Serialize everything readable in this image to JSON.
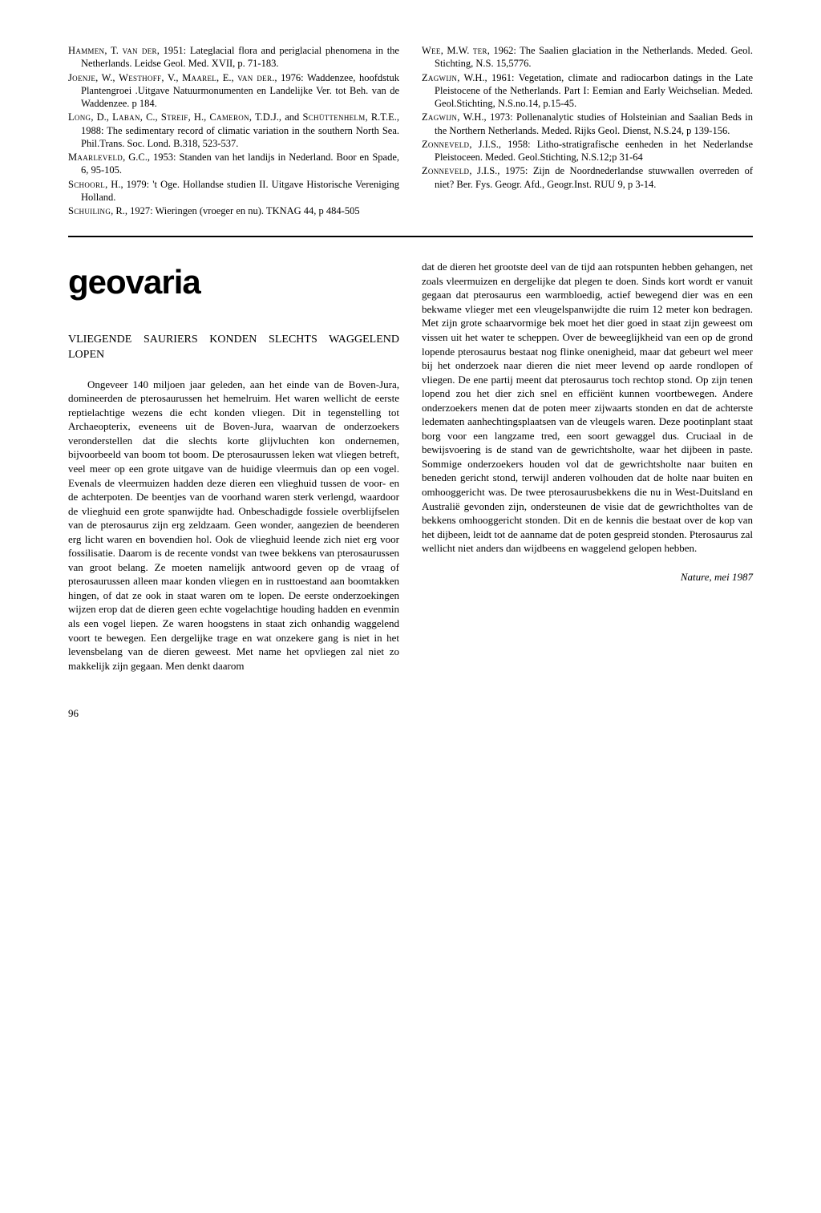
{
  "references": {
    "left": [
      {
        "text": "Hammen, T. van der, 1951: Lateglacial flora and periglacial phenomena in the Netherlands. Leidse Geol. Med. XVII, p. 71-183.",
        "author": "Hammen, T. van der"
      },
      {
        "text": "Joenje, W., Westhoff, V., Maarel, E., van der., 1976: Waddenzee, hoofdstuk Plantengroei .Uitgave Natuurmonumenten en Landelijke Ver. tot Beh. van de Waddenzee. p 184.",
        "author": "Joenje, W., Westhoff, V., Maarel, E., van der."
      },
      {
        "text": "Long, D., Laban, C., Streif, H., Cameron, T.D.J., and Schüttenhelm, R.T.E., 1988: The sedimentary record of climatic variation in the southern North Sea. Phil.Trans. Soc. Lond. B.318, 523-537.",
        "author": "Long, D., Laban, C., Streif, H., Cameron, T.D.J., and Schüttenhelm, R.T.E."
      },
      {
        "text": "Maarleveld, G.C., 1953: Standen van het landijs in Nederland. Boor en Spade, 6, 95-105.",
        "author": "Maarleveld, G.C."
      },
      {
        "text": "Schoorl, H., 1979: 't Oge. Hollandse studien II. Uitgave Historische Vereniging Holland.",
        "author": "Schoorl, H."
      },
      {
        "text": "Schuiling, R., 1927: Wieringen (vroeger en nu). TKNAG 44, p 484-505",
        "author": "Schuiling, R."
      }
    ],
    "right": [
      {
        "text": "Wee, M.W. ter, 1962: The Saalien glaciation in the Netherlands. Meded. Geol. Stichting, N.S. 15,5776.",
        "author": "Wee, M.W. ter"
      },
      {
        "text": "Zagwijn, W.H., 1961: Vegetation, climate and radiocarbon datings in the Late Pleistocene of the Netherlands. Part I: Eemian and Early Weichselian. Meded. Geol.Stichting, N.S.no.14, p.15-45.",
        "author": "Zagwijn, W.H."
      },
      {
        "text": "Zagwijn, W.H., 1973: Pollenanalytic studies of Holsteinian and Saalian Beds in the Northern Netherlands. Meded. Rijks Geol. Dienst, N.S.24, p 139-156.",
        "author": "Zagwijn, W.H."
      },
      {
        "text": "Zonneveld, J.I.S., 1958: Litho-stratigrafische eenheden in het Nederlandse Pleistoceen. Meded. Geol.Stichting, N.S.12;p 31-64",
        "author": "Zonneveld, J.I.S."
      },
      {
        "text": "Zonneveld, J.I.S., 1975: Zijn de Noordnederlandse stuwwallen overreden of niet? Ber. Fys. Geogr. Afd., Geogr.Inst. RUU 9, p 3-14.",
        "author": "Zonneveld, J.I.S."
      }
    ]
  },
  "article": {
    "section_title": "geovaria",
    "subtitle": "VLIEGENDE SAURIERS KONDEN SLECHTS WAGGELEND LOPEN",
    "left_body": "Ongeveer 140 miljoen jaar geleden, aan het einde van de Boven-Jura, domineerden de pterosaurussen het hemelruim. Het waren wellicht de eerste reptielachtige wezens die echt konden vliegen. Dit in tegenstelling tot Archaeopterix, eveneens uit de Boven-Jura, waarvan de onderzoekers veronderstellen dat die slechts korte glijvluchten kon ondernemen, bijvoorbeeld van boom tot boom. De pterosaurussen leken wat vliegen betreft, veel meer op een grote uitgave van de huidige vleermuis dan op een vogel. Evenals de vleermuizen hadden deze dieren een vlieghuid tussen de voor- en de achterpoten. De beentjes van de voorhand waren sterk verlengd, waardoor de vlieghuid een grote spanwijdte had. Onbeschadigde fossiele overblijfselen van de pterosaurus zijn erg zeldzaam. Geen wonder, aangezien de beenderen erg licht waren en bovendien hol. Ook de vlieghuid leende zich niet erg voor fossilisatie. Daarom is de recente vondst van twee bekkens van pterosaurussen van groot belang. Ze moeten namelijk antwoord geven op de vraag of pterosaurussen alleen maar konden vliegen en in rusttoestand aan boomtakken hingen, of dat ze ook in staat waren om te lopen. De eerste onderzoekingen wijzen erop dat de dieren geen echte vogelachtige houding hadden en evenmin als een vogel liepen. Ze waren hoogstens in staat zich onhandig waggelend voort te bewegen. Een dergelijke trage en wat onzekere gang is niet in het levensbelang van de dieren geweest. Met name het opvliegen zal niet zo makkelijk zijn gegaan. Men denkt daarom",
    "right_body": "dat de dieren het grootste deel van de tijd aan rotspunten hebben gehangen, net zoals vleermuizen en dergelijke dat plegen te doen. Sinds kort wordt er vanuit gegaan dat pterosaurus een warmbloedig, actief bewegend dier was en een bekwame vlieger met een vleugelspanwijdte die ruim 12 meter kon bedragen. Met zijn grote schaarvormige bek moet het dier goed in staat zijn geweest om vissen uit het water te scheppen. Over de beweeglijkheid van een op de grond lopende pterosaurus bestaat nog flinke onenigheid, maar dat gebeurt wel meer bij het onderzoek naar dieren die niet meer levend op aarde rondlopen of vliegen. De ene partij meent dat pterosaurus toch rechtop stond. Op zijn tenen lopend zou het dier zich snel en efficiënt kunnen voortbewegen. Andere onderzoekers menen dat de poten meer zijwaarts stonden en dat de achterste ledematen aanhechtingsplaatsen van de vleugels waren. Deze pootinplant staat borg voor een langzame tred, een soort gewaggel dus. Cruciaal in de bewijsvoering is de stand van de gewrichtsholte, waar het dijbeen in paste. Sommige onderzoekers houden vol dat de gewrichtsholte naar buiten en beneden gericht stond, terwijl anderen volhouden dat de holte naar buiten en omhooggericht was. De twee pterosaurusbekkens die nu in West-Duitsland en Australië gevonden zijn, ondersteunen de visie dat de gewrichtholtes van de bekkens omhooggericht stonden. Dit en de kennis die bestaat over de kop van het dijbeen, leidt tot de aanname dat de poten gespreid stonden. Pterosaurus zal wellicht niet anders dan wijdbeens en waggelend gelopen hebben.",
    "source": "Nature, mei 1987"
  },
  "page_number": "96"
}
